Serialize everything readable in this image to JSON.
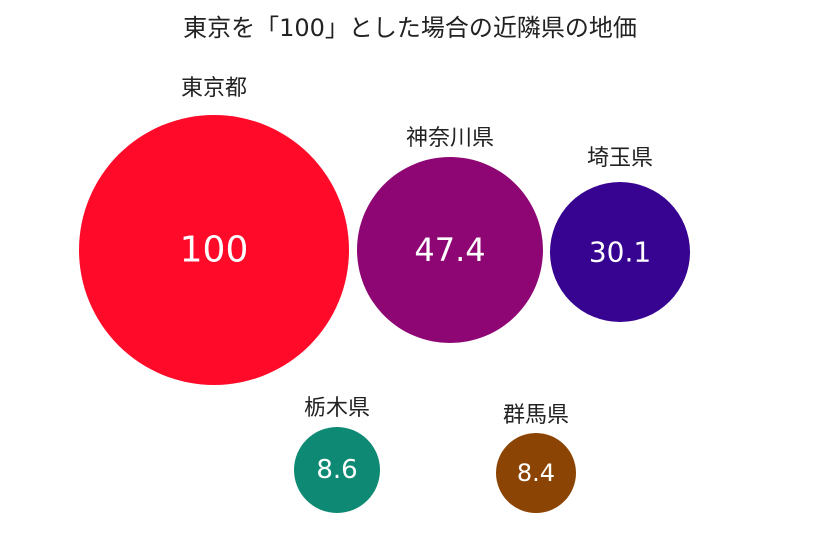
{
  "chart_data": {
    "type": "bubble",
    "title": "東京を「100」とした場合の近隣県の地価",
    "items": [
      {
        "label": "東京都",
        "value": 100,
        "display": "100",
        "color": "#FF0A28"
      },
      {
        "label": "神奈川県",
        "value": 47.4,
        "display": "47.4",
        "color": "#8E0674"
      },
      {
        "label": "埼玉県",
        "value": 30.1,
        "display": "30.1",
        "color": "#360490"
      },
      {
        "label": "栃木県",
        "value": 8.6,
        "display": "8.6",
        "color": "#0E8A74"
      },
      {
        "label": "群馬県",
        "value": 8.4,
        "display": "8.4",
        "color": "#8C4404"
      }
    ]
  }
}
